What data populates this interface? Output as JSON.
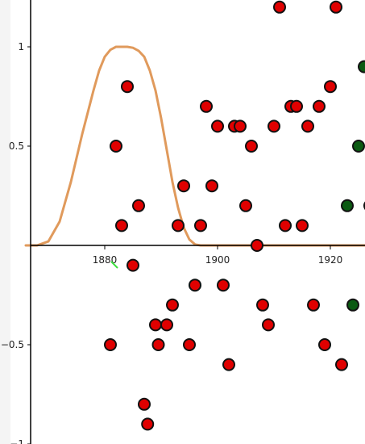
{
  "chart_data": {
    "type": "scatter",
    "title": "",
    "xlabel": "",
    "ylabel": "",
    "xlim": [
      1866,
      1926.5
    ],
    "ylim": [
      -1.0,
      1.24
    ],
    "x_ticks": [
      {
        "value": 1880,
        "label": "1880"
      },
      {
        "value": 1900,
        "label": "1900"
      },
      {
        "value": 1920,
        "label": "1920"
      }
    ],
    "y_ticks": [
      {
        "value": 1,
        "label": "1"
      },
      {
        "value": 0.5,
        "label": "0.5"
      },
      {
        "value": -0.5,
        "label": "−0.5"
      },
      {
        "value": -1,
        "label": "−1"
      }
    ],
    "grid": false,
    "colors": {
      "red_points": "#e00000",
      "green_points": "#0b5a12",
      "curve": "#e09a5c",
      "point_edge": "#111111",
      "axis": "#000000"
    },
    "series": [
      {
        "marker": "circle",
        "color": "#e00000",
        "points": [
          [
            1882,
            0.5
          ],
          [
            1883,
            0.1
          ],
          [
            1884,
            0.8
          ],
          [
            1885,
            -0.1
          ],
          [
            1886,
            0.2
          ],
          [
            1881,
            -0.5
          ],
          [
            1887,
            -0.8
          ],
          [
            1887.6,
            -0.9
          ],
          [
            1889,
            -0.4
          ],
          [
            1889.5,
            -0.5
          ],
          [
            1891,
            -0.4
          ],
          [
            1892,
            -0.3
          ],
          [
            1893,
            0.1
          ],
          [
            1894,
            0.3
          ],
          [
            1895,
            -0.5
          ],
          [
            1896,
            -0.2
          ],
          [
            1897,
            0.1
          ],
          [
            1898,
            0.7
          ],
          [
            1899,
            0.3
          ],
          [
            1900,
            0.6
          ],
          [
            1901,
            -0.2
          ],
          [
            1902,
            -0.6
          ],
          [
            1903,
            0.6
          ],
          [
            1904,
            0.6
          ],
          [
            1905,
            0.2
          ],
          [
            1906,
            0.5
          ],
          [
            1907,
            0.0
          ],
          [
            1908,
            -0.3
          ],
          [
            1909,
            -0.4
          ],
          [
            1910,
            0.6
          ],
          [
            1911,
            1.2
          ],
          [
            1912,
            0.1
          ],
          [
            1913,
            0.7
          ],
          [
            1914,
            0.7
          ],
          [
            1915,
            0.1
          ],
          [
            1916,
            0.6
          ],
          [
            1917,
            -0.3
          ],
          [
            1918,
            0.7
          ],
          [
            1919,
            -0.5
          ],
          [
            1920,
            0.8
          ],
          [
            1921,
            1.2
          ],
          [
            1922,
            -0.6
          ]
        ]
      },
      {
        "marker": "circle",
        "color": "#0b5a12",
        "points": [
          [
            1923,
            0.2
          ],
          [
            1924,
            -0.3
          ],
          [
            1925,
            0.5
          ],
          [
            1926,
            0.9
          ],
          [
            1927,
            0.2
          ]
        ]
      },
      {
        "type": "line",
        "color": "#e09a5c",
        "x": [
          1866,
          1868,
          1870,
          1872,
          1874,
          1876,
          1878,
          1879,
          1880,
          1881,
          1882,
          1883,
          1884,
          1885,
          1886,
          1887,
          1888,
          1889,
          1890,
          1891,
          1892,
          1893,
          1894,
          1895,
          1896,
          1897,
          1898,
          1900,
          1905,
          1910,
          1915,
          1920,
          1925,
          1926.5
        ],
        "y": [
          0,
          0,
          0.02,
          0.12,
          0.32,
          0.56,
          0.78,
          0.88,
          0.95,
          0.985,
          1.0,
          1.0,
          1.0,
          0.995,
          0.98,
          0.95,
          0.88,
          0.78,
          0.64,
          0.48,
          0.32,
          0.19,
          0.09,
          0.03,
          0.005,
          0,
          0,
          0,
          0,
          0,
          0,
          0,
          0,
          0
        ]
      }
    ]
  }
}
